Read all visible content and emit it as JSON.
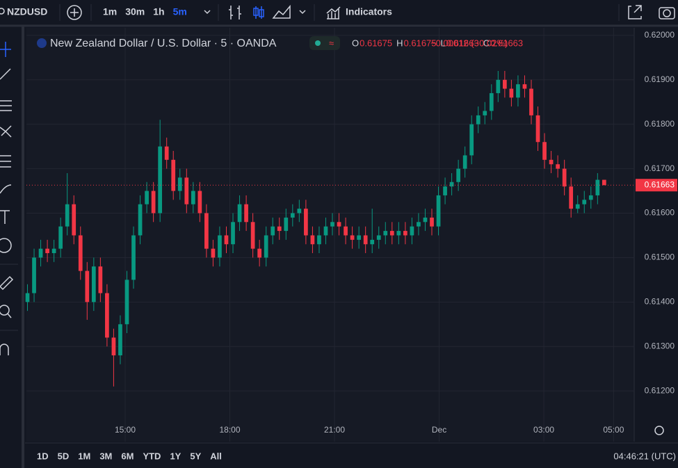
{
  "toolbar": {
    "symbol": "NZDUSD",
    "intervals": [
      "1m",
      "30m",
      "1h",
      "5m"
    ],
    "active_interval": 3,
    "indicators": "Indicators"
  },
  "legend": {
    "title": "New Zealand Dollar / U.S. Dollar · 5 · OANDA",
    "ohlc_labels": [
      "O",
      "H",
      "L",
      "C"
    ],
    "change": "−0.00012 (−0.02%)"
  },
  "footer": {
    "ranges": [
      "1D",
      "5D",
      "1M",
      "3M",
      "6M",
      "YTD",
      "1Y",
      "5Y",
      "All"
    ],
    "clock": "04:46:21 (UTC)"
  },
  "chart_data": {
    "type": "candlestick",
    "up_color": "#089981",
    "down_color": "#f23645",
    "grid": true,
    "xlim": [
      12.17,
      29.59
    ],
    "ylim": [
      0.61086,
      0.62017
    ],
    "xticks": [
      {
        "value": 15,
        "label": "15:00"
      },
      {
        "value": 18,
        "label": "18:00"
      },
      {
        "value": 21,
        "label": "21:00"
      },
      {
        "value": 24,
        "label": "Dec"
      },
      {
        "value": 27,
        "label": "03:00"
      },
      {
        "value": 29,
        "label": "05:00"
      }
    ],
    "yticks": [
      {
        "value": 0.612,
        "label": "0.61200"
      },
      {
        "value": 0.613,
        "label": "0.61300"
      },
      {
        "value": 0.614,
        "label": "0.61400"
      },
      {
        "value": 0.615,
        "label": "0.61500"
      },
      {
        "value": 0.616,
        "label": "0.61600"
      },
      {
        "value": 0.617,
        "label": "0.61700"
      },
      {
        "value": 0.618,
        "label": "0.61800"
      },
      {
        "value": 0.619,
        "label": "0.61900"
      },
      {
        "value": 0.62,
        "label": "0.62000"
      }
    ],
    "x": [
      12.2,
      12.39,
      12.58,
      12.77,
      12.96,
      13.15,
      13.34,
      13.53,
      13.72,
      13.91,
      14.1,
      14.29,
      14.48,
      14.67,
      14.86,
      15.05,
      15.24,
      15.43,
      15.62,
      15.81,
      16,
      16.19,
      16.38,
      16.57,
      16.76,
      16.95,
      17.14,
      17.33,
      17.52,
      17.71,
      17.9,
      18.09,
      18.28,
      18.47,
      18.66,
      18.85,
      19.04,
      19.23,
      19.42,
      19.61,
      19.8,
      19.99,
      20.18,
      20.37,
      20.56,
      20.75,
      20.94,
      21.13,
      21.32,
      21.51,
      21.7,
      21.89,
      22.08,
      22.27,
      22.46,
      22.65,
      22.84,
      23.03,
      23.22,
      23.41,
      23.6,
      23.79,
      23.98,
      24.17,
      24.36,
      24.55,
      24.74,
      24.93,
      25.12,
      25.31,
      25.5,
      25.69,
      25.88,
      26.07,
      26.26,
      26.45,
      26.64,
      26.83,
      27.02,
      27.21,
      27.4,
      27.59,
      27.78,
      27.97,
      28.16,
      28.35,
      28.54,
      28.73
    ],
    "ohlc": [
      [
        0.614,
        0.6144,
        0.6138,
        0.6142
      ],
      [
        0.6142,
        0.6152,
        0.614,
        0.615
      ],
      [
        0.615,
        0.6154,
        0.6148,
        0.6152
      ],
      [
        0.6152,
        0.6154,
        0.6149,
        0.6151
      ],
      [
        0.6151,
        0.6154,
        0.6149,
        0.6152
      ],
      [
        0.6152,
        0.6159,
        0.615,
        0.6157
      ],
      [
        0.6157,
        0.6169,
        0.6155,
        0.6162
      ],
      [
        0.6162,
        0.6164,
        0.6153,
        0.6155
      ],
      [
        0.6155,
        0.6157,
        0.6145,
        0.6147
      ],
      [
        0.6147,
        0.6149,
        0.6136,
        0.614
      ],
      [
        0.614,
        0.615,
        0.6138,
        0.6148
      ],
      [
        0.6148,
        0.615,
        0.614,
        0.6142
      ],
      [
        0.6142,
        0.6144,
        0.613,
        0.6132
      ],
      [
        0.6132,
        0.6134,
        0.6121,
        0.6128
      ],
      [
        0.6128,
        0.6137,
        0.6126,
        0.6135
      ],
      [
        0.6135,
        0.6147,
        0.6133,
        0.6145
      ],
      [
        0.6145,
        0.6157,
        0.6143,
        0.6155
      ],
      [
        0.6155,
        0.6164,
        0.6153,
        0.6162
      ],
      [
        0.6162,
        0.6167,
        0.616,
        0.6165
      ],
      [
        0.6165,
        0.6167,
        0.6158,
        0.616
      ],
      [
        0.616,
        0.6181,
        0.6158,
        0.6175
      ],
      [
        0.6175,
        0.6177,
        0.617,
        0.6172
      ],
      [
        0.6172,
        0.6174,
        0.6163,
        0.6165
      ],
      [
        0.6165,
        0.617,
        0.6163,
        0.6168
      ],
      [
        0.6168,
        0.617,
        0.616,
        0.6162
      ],
      [
        0.6162,
        0.6167,
        0.616,
        0.6165
      ],
      [
        0.6165,
        0.6167,
        0.6158,
        0.616
      ],
      [
        0.616,
        0.6162,
        0.615,
        0.6152
      ],
      [
        0.6152,
        0.6154,
        0.6148,
        0.615
      ],
      [
        0.615,
        0.6157,
        0.6148,
        0.6155
      ],
      [
        0.6155,
        0.6157,
        0.6151,
        0.6153
      ],
      [
        0.6153,
        0.616,
        0.6151,
        0.6158
      ],
      [
        0.6158,
        0.6164,
        0.6156,
        0.6162
      ],
      [
        0.6162,
        0.6164,
        0.6156,
        0.6158
      ],
      [
        0.6158,
        0.616,
        0.615,
        0.6152
      ],
      [
        0.6152,
        0.6154,
        0.6148,
        0.615
      ],
      [
        0.615,
        0.6157,
        0.6148,
        0.6155
      ],
      [
        0.6155,
        0.6159,
        0.6153,
        0.6157
      ],
      [
        0.6157,
        0.6159,
        0.6154,
        0.6156
      ],
      [
        0.6156,
        0.6161,
        0.6154,
        0.6159
      ],
      [
        0.6159,
        0.6162,
        0.6157,
        0.616
      ],
      [
        0.616,
        0.6163,
        0.6158,
        0.6161
      ],
      [
        0.6161,
        0.6163,
        0.6153,
        0.6155
      ],
      [
        0.6155,
        0.6157,
        0.6151,
        0.6153
      ],
      [
        0.6153,
        0.6157,
        0.6151,
        0.6155
      ],
      [
        0.6155,
        0.6159,
        0.6153,
        0.6157
      ],
      [
        0.6157,
        0.616,
        0.6155,
        0.6158
      ],
      [
        0.6158,
        0.616,
        0.6155,
        0.6157
      ],
      [
        0.6157,
        0.6159,
        0.6153,
        0.6155
      ],
      [
        0.6155,
        0.6157,
        0.6152,
        0.6154
      ],
      [
        0.6154,
        0.6157,
        0.6152,
        0.6155
      ],
      [
        0.6155,
        0.6157,
        0.6151,
        0.6153
      ],
      [
        0.6153,
        0.6161,
        0.6151,
        0.6154
      ],
      [
        0.6154,
        0.6157,
        0.6152,
        0.6155
      ],
      [
        0.6155,
        0.6158,
        0.6153,
        0.6156
      ],
      [
        0.6156,
        0.6158,
        0.6153,
        0.6155
      ],
      [
        0.6155,
        0.6158,
        0.6153,
        0.6156
      ],
      [
        0.6156,
        0.6158,
        0.6153,
        0.6155
      ],
      [
        0.6155,
        0.6159,
        0.6153,
        0.6157
      ],
      [
        0.6157,
        0.616,
        0.6155,
        0.6158
      ],
      [
        0.6158,
        0.6161,
        0.6156,
        0.6159
      ],
      [
        0.6159,
        0.6161,
        0.6155,
        0.6157
      ],
      [
        0.6157,
        0.6166,
        0.6155,
        0.6164
      ],
      [
        0.6164,
        0.6168,
        0.6162,
        0.6166
      ],
      [
        0.6166,
        0.6169,
        0.6164,
        0.6167
      ],
      [
        0.6167,
        0.6172,
        0.6165,
        0.617
      ],
      [
        0.617,
        0.6175,
        0.6168,
        0.6173
      ],
      [
        0.6173,
        0.6182,
        0.6171,
        0.618
      ],
      [
        0.618,
        0.6184,
        0.6178,
        0.6182
      ],
      [
        0.6182,
        0.6185,
        0.618,
        0.6183
      ],
      [
        0.6183,
        0.6189,
        0.6181,
        0.6187
      ],
      [
        0.6187,
        0.6192,
        0.6185,
        0.619
      ],
      [
        0.619,
        0.6192,
        0.6186,
        0.6188
      ],
      [
        0.6188,
        0.619,
        0.6184,
        0.6186
      ],
      [
        0.6186,
        0.6191,
        0.6184,
        0.6189
      ],
      [
        0.6189,
        0.6191,
        0.6186,
        0.6188
      ],
      [
        0.6188,
        0.619,
        0.618,
        0.6182
      ],
      [
        0.6182,
        0.6184,
        0.6174,
        0.6176
      ],
      [
        0.6176,
        0.6178,
        0.617,
        0.6172
      ],
      [
        0.6172,
        0.6174,
        0.6169,
        0.6171
      ],
      [
        0.6171,
        0.6173,
        0.6168,
        0.617
      ],
      [
        0.617,
        0.6172,
        0.6164,
        0.6166
      ],
      [
        0.6166,
        0.6168,
        0.6159,
        0.6161
      ],
      [
        0.6161,
        0.6164,
        0.616,
        0.6162
      ],
      [
        0.6162,
        0.6165,
        0.616,
        0.6163
      ],
      [
        0.6163,
        0.6166,
        0.6161,
        0.6164
      ],
      [
        0.6164,
        0.6169,
        0.6162,
        0.61675
      ],
      [
        0.61675,
        0.61675,
        0.61663,
        0.61663
      ]
    ]
  }
}
